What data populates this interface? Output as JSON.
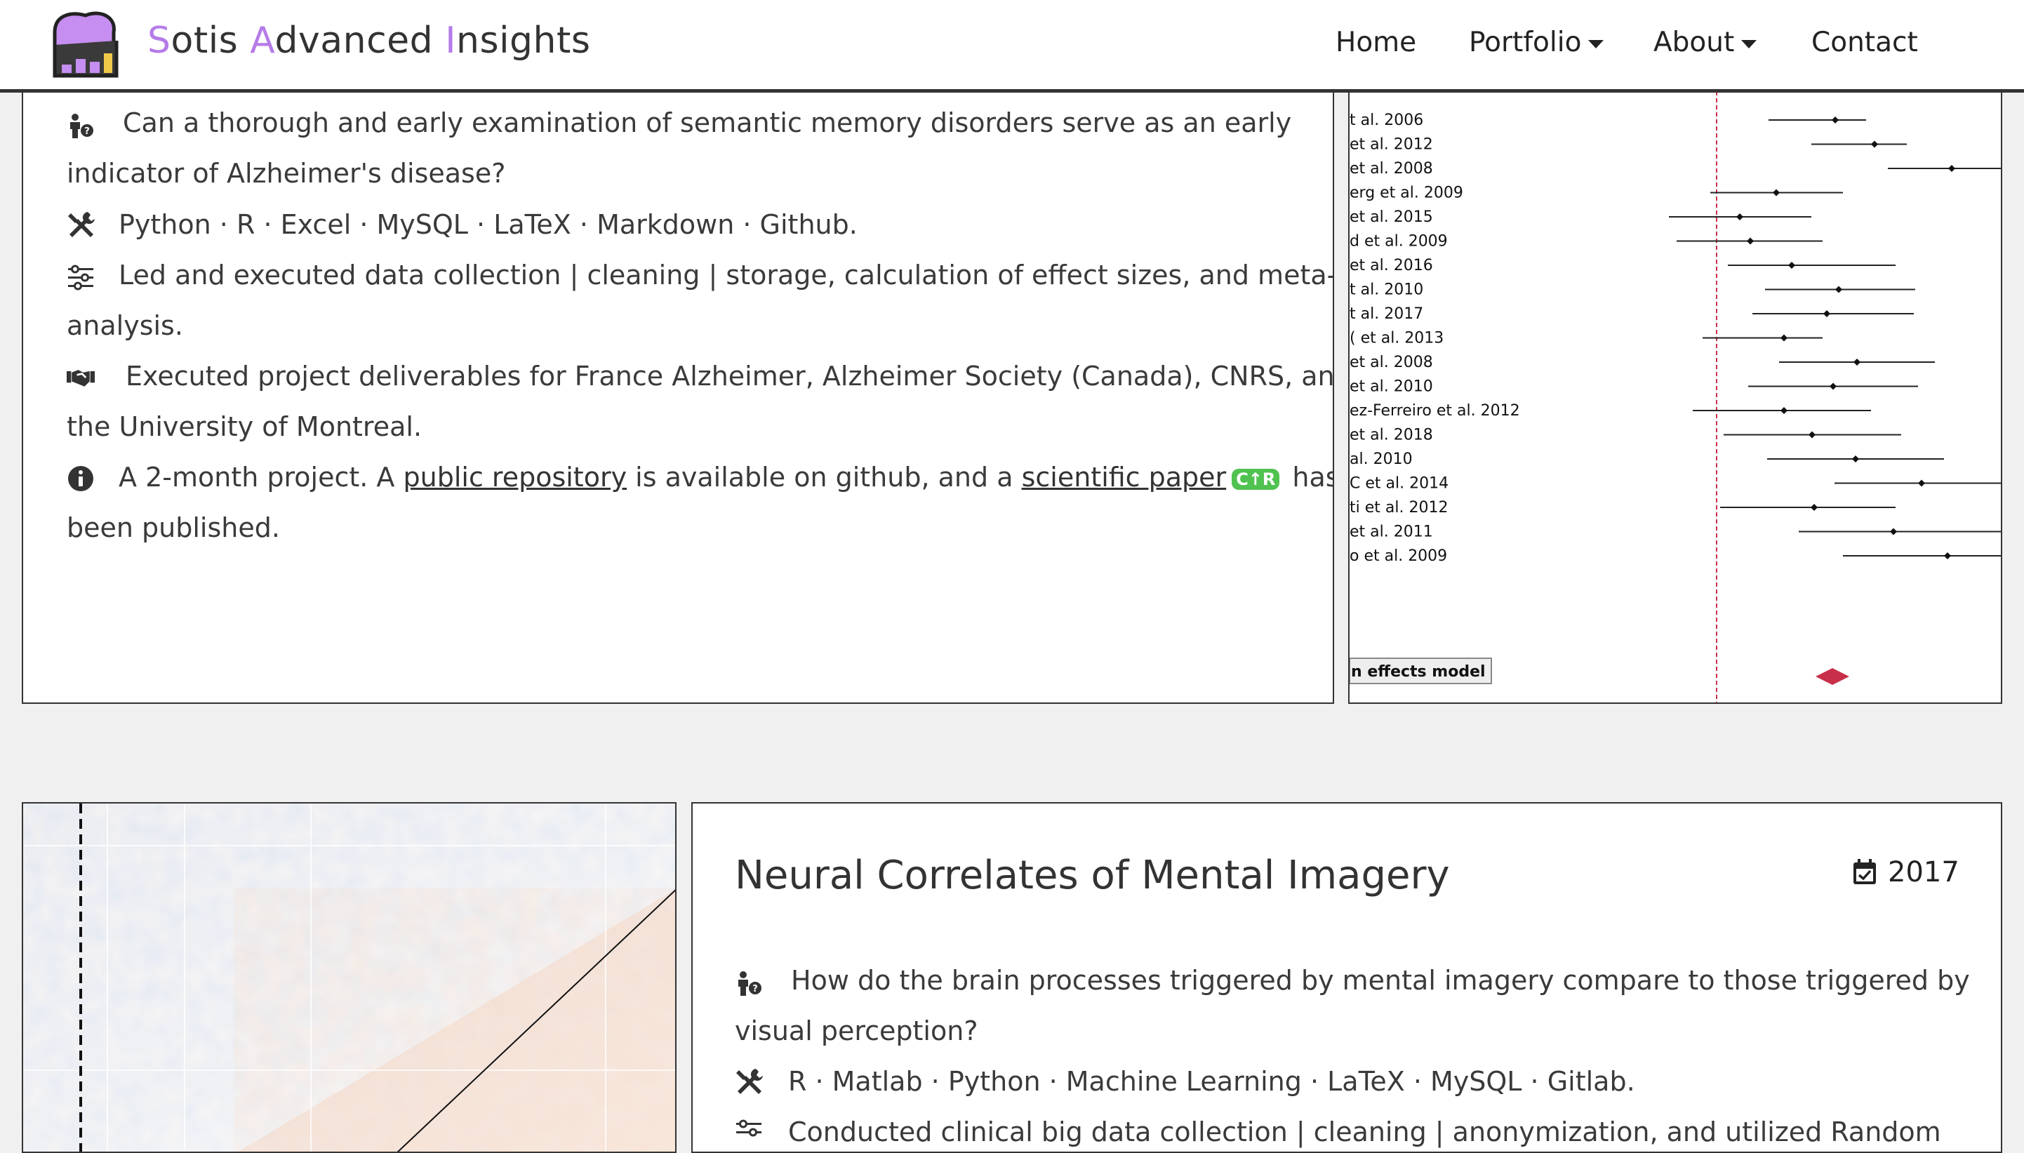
{
  "header": {
    "brand": {
      "s1": "S",
      "t1": "otis ",
      "s2": "A",
      "t2": "dvanced ",
      "s3": "I",
      "t3": "nsights"
    },
    "nav": {
      "home": "Home",
      "portfolio": "Portfolio",
      "about": "About",
      "contact": "Contact"
    },
    "accent_color": "#b57be8"
  },
  "project1": {
    "question_l1": "Can a thorough and early examination of semantic memory disorders serve as an early",
    "question_l2": "indicator of Alzheimer's disease?",
    "tools": "Python · R · Excel · MySQL · LaTeX · Markdown · Github.",
    "tasks_l1": "Led and executed data collection | cleaning | storage, calculation of effect sizes, and meta-",
    "tasks_l2": "analysis.",
    "clients_l1": "Executed project deliverables for France Alzheimer, Alzheimer Society (Canada), CNRS, and",
    "clients_l2": "the University of Montreal.",
    "info_a": "A 2-month project. A ",
    "info_link1": "public repository",
    "info_b": " is available on github, and a ",
    "info_link2": "scientific paper",
    "info_badge": "C↑R",
    "info_c": "has",
    "info_l2": "been published.",
    "icons": [
      "person-question-icon",
      "tools-icon",
      "sliders-icon",
      "handshake-icon",
      "info-icon"
    ]
  },
  "forest_plot": {
    "studies": [
      "t al. 2006",
      "et al. 2012",
      "et al. 2008",
      "erg et al. 2009",
      "et al. 2015",
      "d et al. 2009",
      "et al. 2016",
      "t al. 2010",
      "t al. 2017",
      "( et al. 2013",
      "et al. 2008",
      "et al. 2010",
      "ez-Ferreiro et al. 2012",
      "et al. 2018",
      "al. 2010",
      "C et al. 2014",
      "ti et al. 2012",
      "et al. 2011",
      "o et al. 2009"
    ],
    "model_label": "n effects model",
    "summary_color": "#c8304a",
    "reference_line_color": "#c8304a"
  },
  "project2": {
    "title": "Neural Correlates of Mental Imagery",
    "year": "2017",
    "question_l1": "How do the brain processes triggered by mental imagery compare to those triggered by",
    "question_l2": "visual perception?",
    "tools": "R · Matlab · Python · Machine Learning · LaTeX · MySQL · Gitlab.",
    "tasks_partial": "Conducted clinical big data collection | cleaning | anonymization, and utilized Random"
  }
}
